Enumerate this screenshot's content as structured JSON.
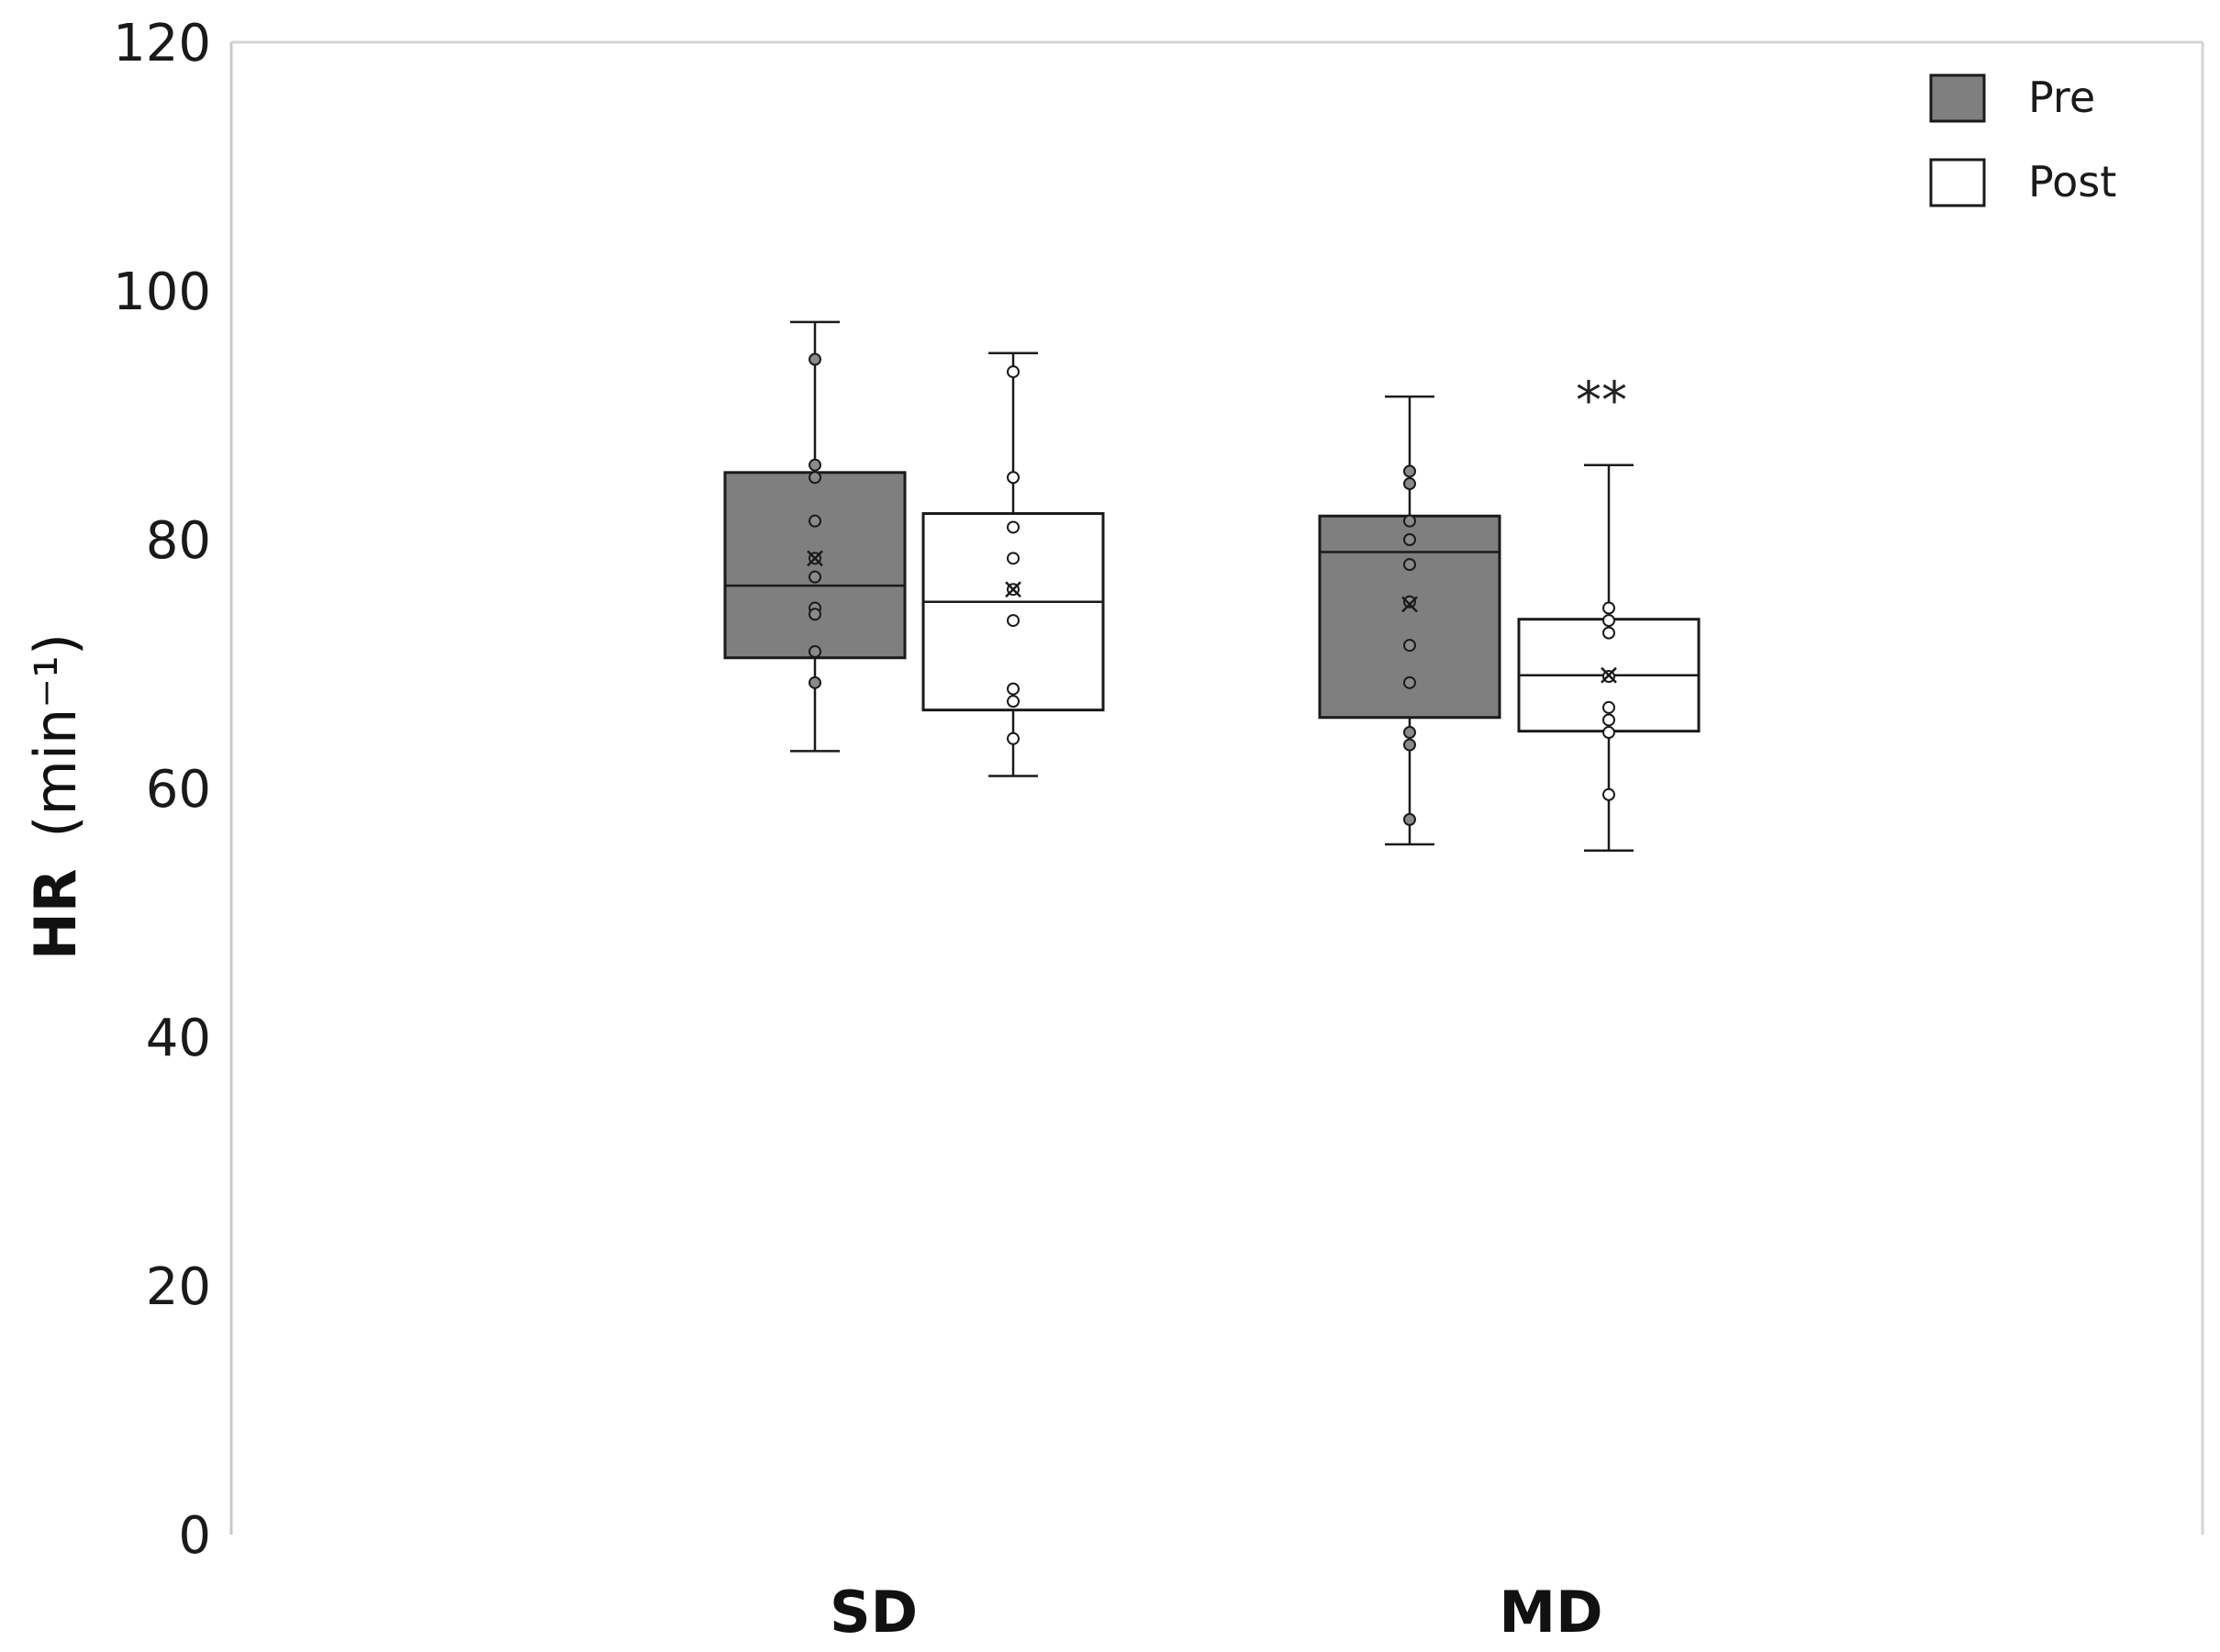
{
  "chart_data": {
    "type": "box",
    "ylabel_main": "HR",
    "ylabel_unit": "(min⁻¹)",
    "ylim": [
      0,
      120
    ],
    "yticks": [
      0,
      20,
      40,
      60,
      80,
      100,
      120
    ],
    "categories": [
      "SD",
      "MD"
    ],
    "legend_position": "top-right",
    "grid": false,
    "series": [
      {
        "name": "Pre",
        "color": "#7f7f7f",
        "boxes": [
          {
            "category": "SD",
            "whisker_low": 63,
            "q1": 70.5,
            "median": 76.3,
            "q3": 85.4,
            "whisker_high": 97.5,
            "mean": 78.5,
            "points": [
              94.5,
              86,
              85,
              81.5,
              78.5,
              77,
              74.5,
              74,
              71,
              68.5
            ]
          },
          {
            "category": "MD",
            "whisker_low": 55.5,
            "q1": 65.7,
            "median": 79,
            "q3": 81.9,
            "whisker_high": 91.5,
            "mean": 74.8,
            "points": [
              85.5,
              84.5,
              81.5,
              80,
              78,
              75,
              71.5,
              68.5,
              64.5,
              63.5,
              57.5
            ]
          }
        ]
      },
      {
        "name": "Post",
        "color": "#ffffff",
        "boxes": [
          {
            "category": "SD",
            "whisker_low": 61,
            "q1": 66.3,
            "median": 75,
            "q3": 82.1,
            "whisker_high": 95,
            "mean": 76,
            "points": [
              93.5,
              85,
              81,
              78.5,
              76,
              73.5,
              68,
              67,
              64
            ]
          },
          {
            "category": "MD",
            "whisker_low": 55,
            "q1": 64.6,
            "median": 69.1,
            "q3": 73.6,
            "whisker_high": 86,
            "mean": 69.1,
            "points": [
              74.5,
              73.5,
              72.5,
              69,
              66.5,
              65.5,
              64.5,
              59.5
            ]
          }
        ]
      }
    ],
    "annotations": [
      {
        "text": "**",
        "category": "MD",
        "series": "Post",
        "y": 92
      }
    ]
  }
}
